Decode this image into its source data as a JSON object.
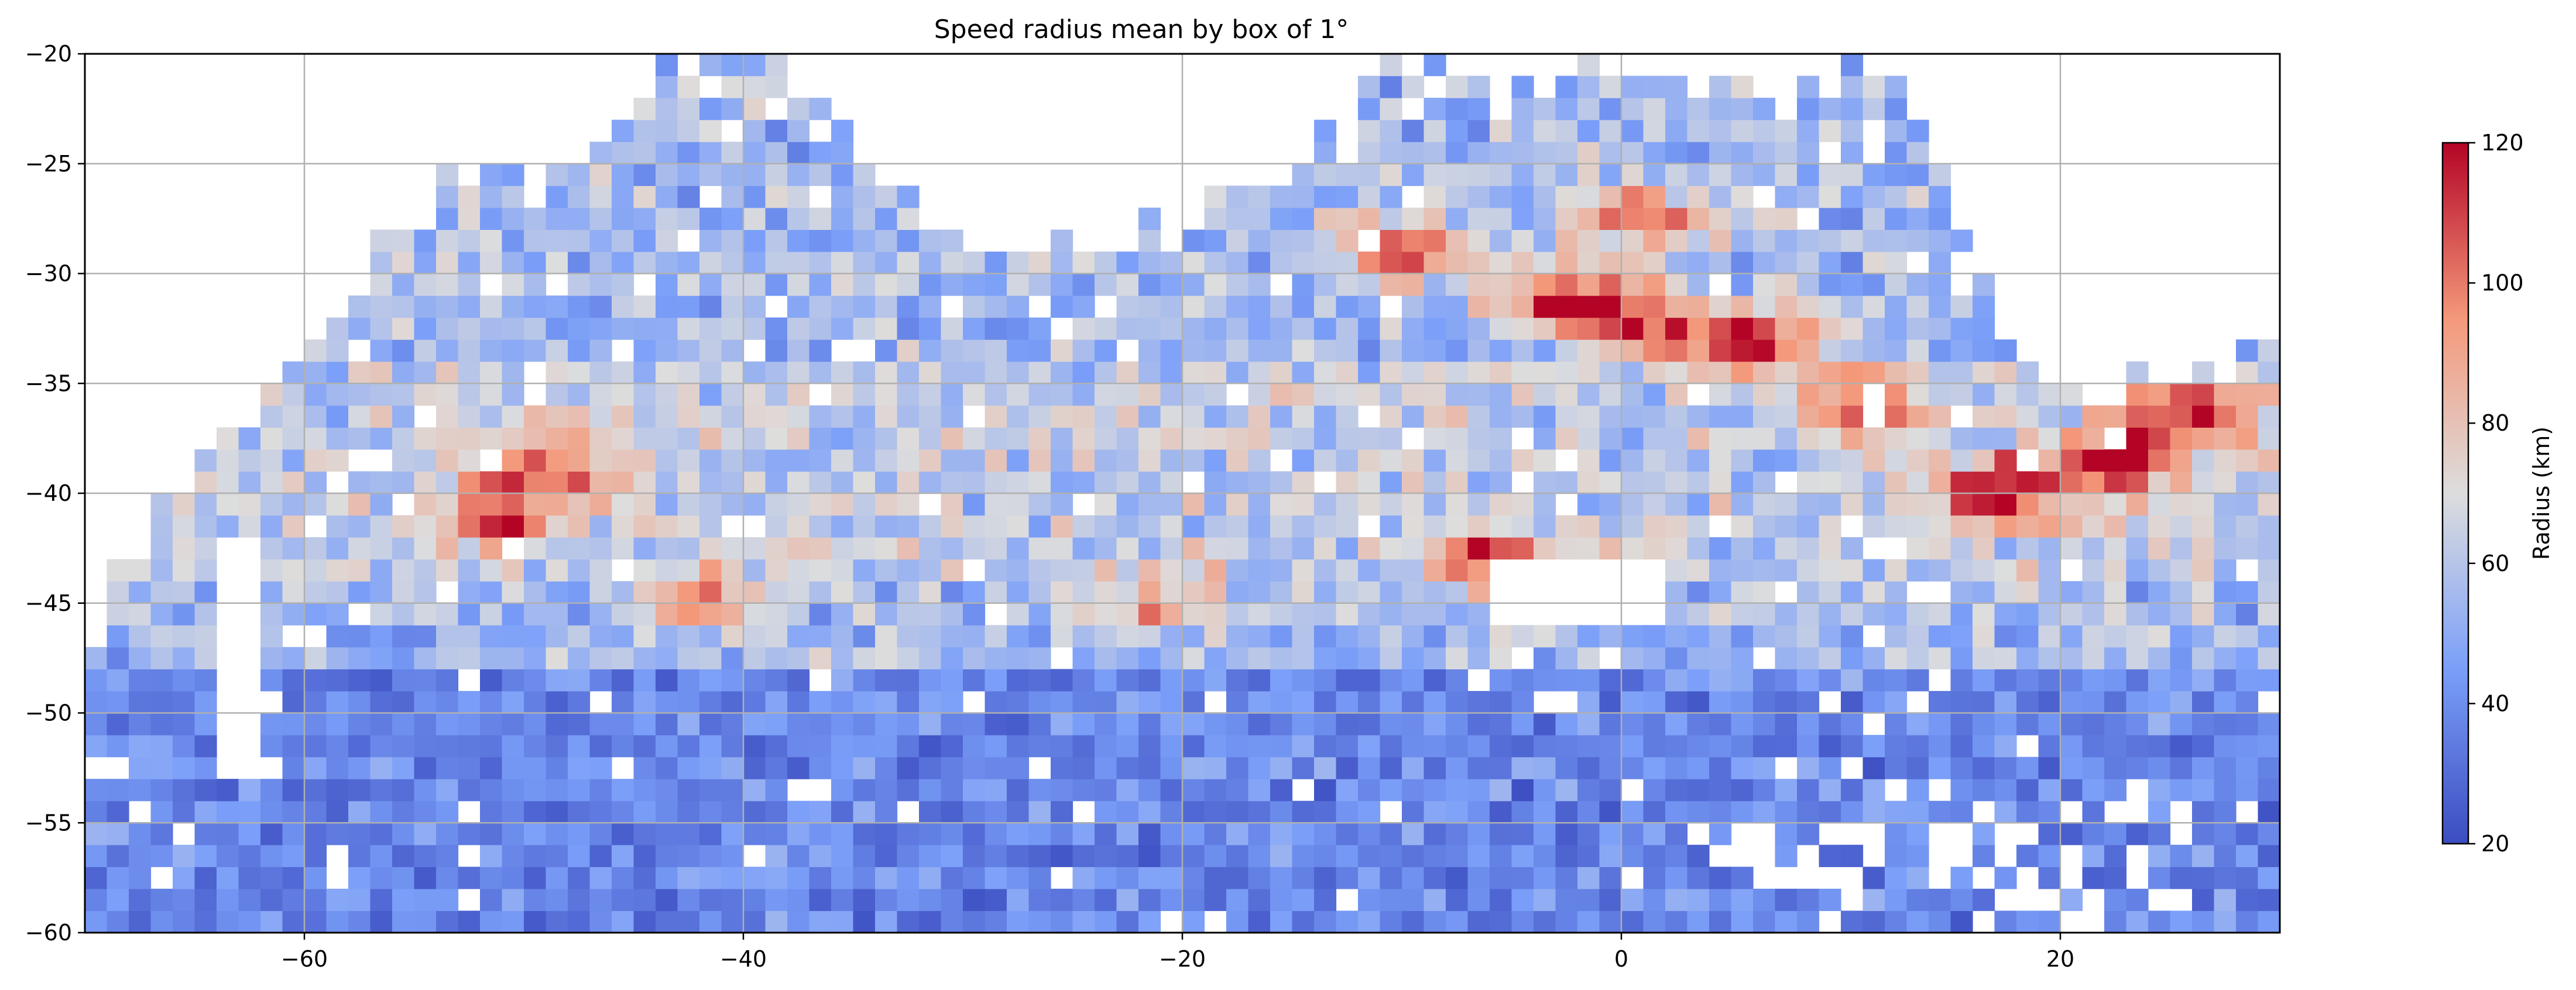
{
  "chart_data": {
    "type": "heatmap",
    "title": "Speed radius mean by box of 1°",
    "xlabel": "",
    "ylabel": "",
    "xlim": [
      -70,
      30
    ],
    "ylim": [
      -60,
      -20
    ],
    "cell_size_deg": 1,
    "grid": true,
    "colormap": "coolwarm",
    "x_ticks": [
      -60,
      -40,
      -20,
      0,
      20
    ],
    "x_tick_labels": [
      "−60",
      "−40",
      "−20",
      "0",
      "20"
    ],
    "y_ticks": [
      -60,
      -55,
      -50,
      -45,
      -40,
      -35,
      -30,
      -25,
      -20
    ],
    "y_tick_labels": [
      "−60",
      "−55",
      "−50",
      "−45",
      "−40",
      "−35",
      "−30",
      "−25",
      "−20"
    ],
    "colorbar": {
      "label": "Radius (km)",
      "range": [
        20,
        120
      ],
      "ticks": [
        20,
        40,
        60,
        80,
        100,
        120
      ],
      "tick_labels": [
        "20",
        "40",
        "60",
        "80",
        "100",
        "120"
      ],
      "placement": "right"
    },
    "field_description": {
      "background_km": 45,
      "hotspots": [
        {
          "lon": 17,
          "lat": -40,
          "radius_km": 120
        },
        {
          "lon": 22,
          "lat": -38.5,
          "radius_km": 115
        },
        {
          "lon": 26,
          "lat": -36.5,
          "radius_km": 112
        },
        {
          "lon": 6,
          "lat": -33,
          "radius_km": 118
        },
        {
          "lon": 1,
          "lat": -32,
          "radius_km": 110
        },
        {
          "lon": -3,
          "lat": -31,
          "radius_km": 110
        },
        {
          "lon": 1,
          "lat": -27.5,
          "radius_km": 105
        },
        {
          "lon": -6,
          "lat": -43,
          "radius_km": 105
        },
        {
          "lon": -51,
          "lat": -41,
          "radius_km": 105
        },
        {
          "lon": -49,
          "lat": -38.5,
          "radius_km": 100
        },
        {
          "lon": 11,
          "lat": -36,
          "radius_km": 100
        },
        {
          "lon": -10,
          "lat": -29,
          "radius_km": 100
        },
        {
          "lon": -42,
          "lat": -45,
          "radius_km": 90
        },
        {
          "lon": -21,
          "lat": -45,
          "radius_km": 90
        }
      ],
      "missing_cells_note": "white cells are boxes with no data"
    }
  }
}
